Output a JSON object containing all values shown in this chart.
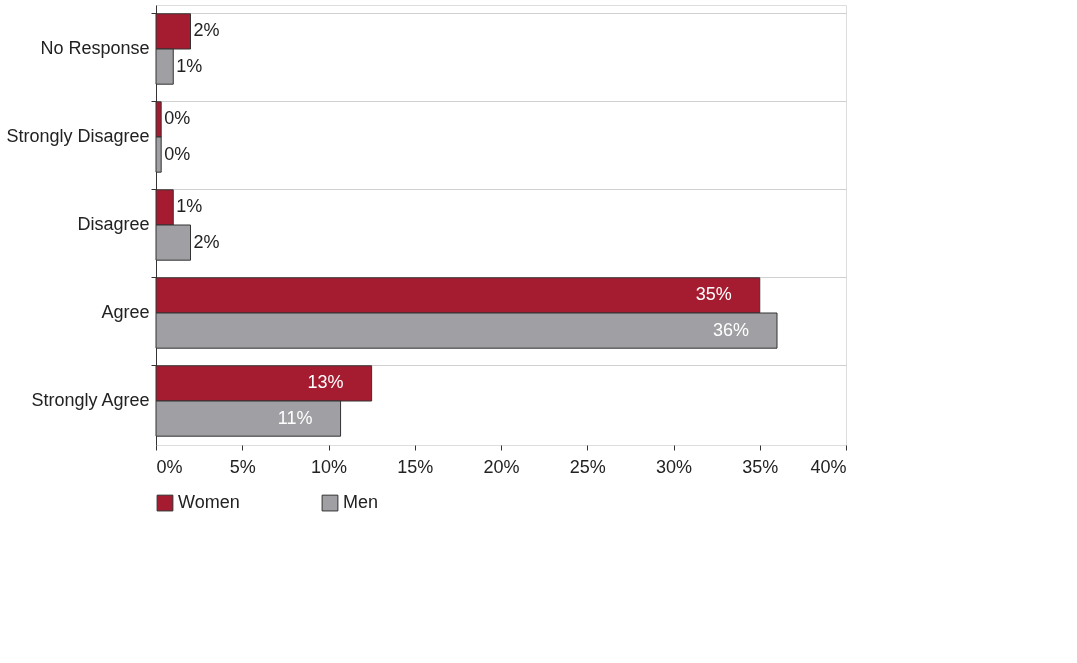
{
  "chart_data": {
    "type": "bar",
    "orientation": "horizontal",
    "categories": [
      "No Response",
      "Strongly Disagree",
      "Disagree",
      "Agree",
      "Strongly Agree"
    ],
    "series": [
      {
        "name": "Women",
        "color": "#a51c30",
        "values": [
          2.0,
          0.3,
          1.0,
          35.0,
          12.5
        ],
        "value_labels": [
          "2%",
          "0%",
          "1%",
          "35%",
          "13%"
        ]
      },
      {
        "name": "Men",
        "color": "#a0a0a4",
        "values": [
          1.0,
          0.3,
          2.0,
          36.0,
          10.7
        ],
        "value_labels": [
          "1%",
          "0%",
          "2%",
          "36%",
          "11%"
        ]
      }
    ],
    "xlim": [
      0,
      40
    ],
    "xticks": [
      {
        "value": 0,
        "label": "0%"
      },
      {
        "value": 5,
        "label": "5%"
      },
      {
        "value": 10,
        "label": "10%"
      },
      {
        "value": 15,
        "label": "15%"
      },
      {
        "value": 20,
        "label": "20%"
      },
      {
        "value": 25,
        "label": "25%"
      },
      {
        "value": 30,
        "label": "30%"
      },
      {
        "value": 35,
        "label": "35%"
      },
      {
        "value": 40,
        "label": "40%"
      }
    ],
    "grid": "y",
    "legend": "bottom"
  }
}
